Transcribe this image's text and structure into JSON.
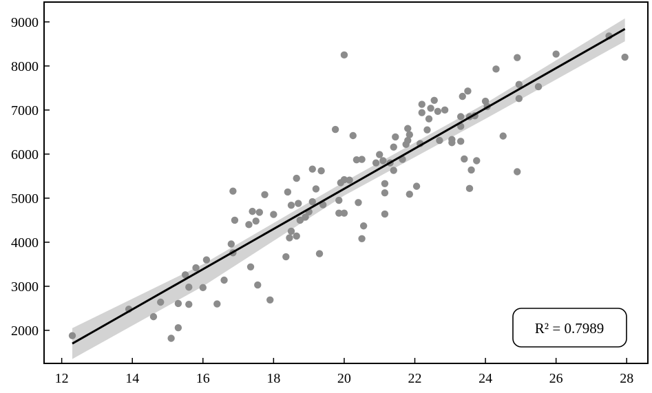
{
  "chart_data": {
    "type": "scatter",
    "xlim": [
      11.5,
      28.6
    ],
    "ylim": [
      1250,
      9450
    ],
    "x_ticks": [
      12,
      14,
      16,
      18,
      20,
      22,
      24,
      26,
      28
    ],
    "y_ticks": [
      2000,
      3000,
      4000,
      5000,
      6000,
      7000,
      8000,
      9000
    ],
    "x_tick_labels": [
      "12",
      "14",
      "16",
      "18",
      "20",
      "22",
      "24",
      "26",
      "28"
    ],
    "y_tick_labels": [
      "2000",
      "3000",
      "4000",
      "5000",
      "6000",
      "7000",
      "8000",
      "9000"
    ],
    "grid": false,
    "points": [
      [
        12.3,
        1880
      ],
      [
        13.9,
        2480
      ],
      [
        14.6,
        2310
      ],
      [
        14.8,
        2640
      ],
      [
        15.1,
        1820
      ],
      [
        15.3,
        2060
      ],
      [
        15.3,
        2610
      ],
      [
        15.5,
        3260
      ],
      [
        15.6,
        2980
      ],
      [
        15.6,
        2590
      ],
      [
        15.8,
        3420
      ],
      [
        16.0,
        2970
      ],
      [
        16.1,
        3600
      ],
      [
        16.4,
        2600
      ],
      [
        16.6,
        3140
      ],
      [
        16.8,
        3960
      ],
      [
        16.85,
        3760
      ],
      [
        16.85,
        5160
      ],
      [
        16.9,
        4500
      ],
      [
        17.3,
        4400
      ],
      [
        17.35,
        3440
      ],
      [
        17.4,
        4700
      ],
      [
        17.5,
        4480
      ],
      [
        17.55,
        3030
      ],
      [
        17.6,
        4680
      ],
      [
        17.75,
        5080
      ],
      [
        17.9,
        2690
      ],
      [
        18.0,
        4630
      ],
      [
        18.35,
        3670
      ],
      [
        18.4,
        5140
      ],
      [
        18.45,
        4100
      ],
      [
        18.5,
        4250
      ],
      [
        18.5,
        4840
      ],
      [
        18.65,
        4140
      ],
      [
        18.65,
        5450
      ],
      [
        18.7,
        4880
      ],
      [
        18.75,
        4500
      ],
      [
        18.9,
        4570
      ],
      [
        19.0,
        4690
      ],
      [
        19.1,
        5660
      ],
      [
        19.1,
        4920
      ],
      [
        19.2,
        5210
      ],
      [
        19.3,
        3740
      ],
      [
        19.35,
        5620
      ],
      [
        19.4,
        4850
      ],
      [
        19.75,
        6560
      ],
      [
        19.85,
        4660
      ],
      [
        19.85,
        4950
      ],
      [
        19.9,
        5350
      ],
      [
        20.0,
        5420
      ],
      [
        20.0,
        4660
      ],
      [
        20.0,
        8250
      ],
      [
        20.25,
        6420
      ],
      [
        20.15,
        5410
      ],
      [
        20.35,
        5870
      ],
      [
        20.4,
        4900
      ],
      [
        20.5,
        5880
      ],
      [
        20.55,
        4370
      ],
      [
        20.5,
        4080
      ],
      [
        20.9,
        5800
      ],
      [
        21.0,
        5990
      ],
      [
        21.1,
        5850
      ],
      [
        21.15,
        5330
      ],
      [
        21.15,
        5120
      ],
      [
        21.15,
        4640
      ],
      [
        21.3,
        5800
      ],
      [
        21.4,
        6160
      ],
      [
        21.4,
        5630
      ],
      [
        21.45,
        6390
      ],
      [
        21.65,
        5880
      ],
      [
        21.75,
        6220
      ],
      [
        21.8,
        6580
      ],
      [
        21.8,
        6310
      ],
      [
        21.85,
        6440
      ],
      [
        21.85,
        5090
      ],
      [
        22.05,
        5270
      ],
      [
        22.15,
        6240
      ],
      [
        22.2,
        6940
      ],
      [
        22.2,
        7130
      ],
      [
        22.35,
        6550
      ],
      [
        22.4,
        6800
      ],
      [
        22.45,
        7040
      ],
      [
        22.55,
        7220
      ],
      [
        22.7,
        6310
      ],
      [
        22.65,
        6970
      ],
      [
        22.85,
        7000
      ],
      [
        23.05,
        6330
      ],
      [
        23.05,
        6260
      ],
      [
        23.3,
        6850
      ],
      [
        23.3,
        6630
      ],
      [
        23.3,
        6290
      ],
      [
        23.35,
        7310
      ],
      [
        23.4,
        5890
      ],
      [
        23.5,
        7430
      ],
      [
        23.55,
        5220
      ],
      [
        23.55,
        6850
      ],
      [
        23.6,
        5640
      ],
      [
        23.7,
        6870
      ],
      [
        23.75,
        5850
      ],
      [
        24.0,
        7200
      ],
      [
        24.05,
        7080
      ],
      [
        24.3,
        7930
      ],
      [
        24.5,
        6410
      ],
      [
        24.9,
        8190
      ],
      [
        24.9,
        5600
      ],
      [
        24.95,
        7580
      ],
      [
        24.95,
        7260
      ],
      [
        25.5,
        7530
      ],
      [
        26.0,
        8270
      ],
      [
        27.5,
        8680
      ],
      [
        27.95,
        8200
      ]
    ],
    "fit_line": {
      "x": [
        12.3,
        27.95
      ],
      "y": [
        1700,
        8840
      ]
    },
    "confidence_band": {
      "x": [
        12.3,
        16.0,
        20.0,
        24.0,
        27.95
      ],
      "upper": [
        2050,
        3500,
        5370,
        7150,
        9080
      ],
      "lower": [
        1350,
        3000,
        5060,
        6800,
        8560
      ]
    },
    "annotation": "R² = 0.7989",
    "colors": {
      "points": "#8c8c8c",
      "fit_line": "#000000",
      "band": "#d3d3d3",
      "axes": "#000000"
    }
  }
}
